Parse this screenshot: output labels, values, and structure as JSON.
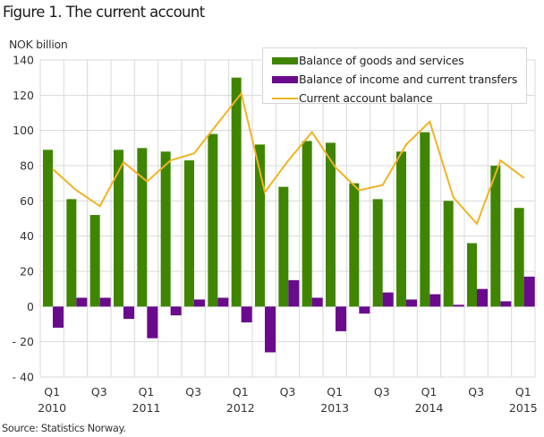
{
  "figure": {
    "title": "Figure 1. The current account",
    "unit_label": "NOK billion",
    "source": "Source: Statistics Norway."
  },
  "legend": [
    {
      "label": "Balance of goods and services",
      "type": "bar",
      "color": "#3f8500"
    },
    {
      "label": "Balance of income and current transfers",
      "type": "bar",
      "color": "#6a0a8c"
    },
    {
      "label": "Current account balance",
      "type": "line",
      "color": "#f0b323"
    }
  ],
  "colors": {
    "goods": "#3f8500",
    "income": "#6a0a8c",
    "current": "#f0b323",
    "grid": "#d9d9d9"
  },
  "chart_data": {
    "type": "bar",
    "title": "Figure 1. The current account",
    "xlabel": "",
    "ylabel": "NOK billion",
    "ylim": [
      -40,
      140
    ],
    "yticks": [
      140,
      120,
      100,
      80,
      60,
      40,
      20,
      0,
      -20,
      -40
    ],
    "ytick_labels": [
      "140",
      "120",
      "100",
      "80",
      "60",
      "40",
      "20",
      "0",
      "- 20",
      "- 40"
    ],
    "grid": true,
    "legend_position": "top-right",
    "categories": [
      "2010Q1",
      "2010Q2",
      "2010Q3",
      "2010Q4",
      "2011Q1",
      "2011Q2",
      "2011Q3",
      "2011Q4",
      "2012Q1",
      "2012Q2",
      "2012Q3",
      "2012Q4",
      "2013Q1",
      "2013Q2",
      "2013Q3",
      "2013Q4",
      "2014Q1",
      "2014Q2",
      "2014Q3",
      "2014Q4",
      "2015Q1"
    ],
    "xtick_labels": [
      {
        "index": 0,
        "quarter": "Q1",
        "year": "2010"
      },
      {
        "index": 2,
        "quarter": "Q3",
        "year": ""
      },
      {
        "index": 4,
        "quarter": "Q1",
        "year": "2011"
      },
      {
        "index": 6,
        "quarter": "Q3",
        "year": ""
      },
      {
        "index": 8,
        "quarter": "Q1",
        "year": "2012"
      },
      {
        "index": 10,
        "quarter": "Q3",
        "year": ""
      },
      {
        "index": 12,
        "quarter": "Q1",
        "year": "2013"
      },
      {
        "index": 14,
        "quarter": "Q3",
        "year": ""
      },
      {
        "index": 16,
        "quarter": "Q1",
        "year": "2014"
      },
      {
        "index": 18,
        "quarter": "Q3",
        "year": ""
      },
      {
        "index": 20,
        "quarter": "Q1",
        "year": "2015"
      }
    ],
    "series": [
      {
        "name": "Balance of goods and services",
        "type": "bar",
        "values": [
          89,
          61,
          52,
          89,
          90,
          88,
          83,
          98,
          130,
          92,
          68,
          94,
          93,
          70,
          61,
          88,
          99,
          60,
          36,
          80,
          56
        ]
      },
      {
        "name": "Balance of income and current transfers",
        "type": "bar",
        "values": [
          -12,
          5,
          5,
          -7,
          -18,
          -5,
          4,
          5,
          -9,
          -26,
          15,
          5,
          -14,
          -4,
          8,
          4,
          7,
          1,
          10,
          3,
          17
        ]
      },
      {
        "name": "Current account balance",
        "type": "line",
        "values": [
          78,
          66,
          57,
          82,
          71,
          83,
          87,
          104,
          121,
          65,
          83,
          99,
          79,
          66,
          69,
          92,
          105,
          62,
          47,
          83,
          73
        ]
      }
    ]
  }
}
